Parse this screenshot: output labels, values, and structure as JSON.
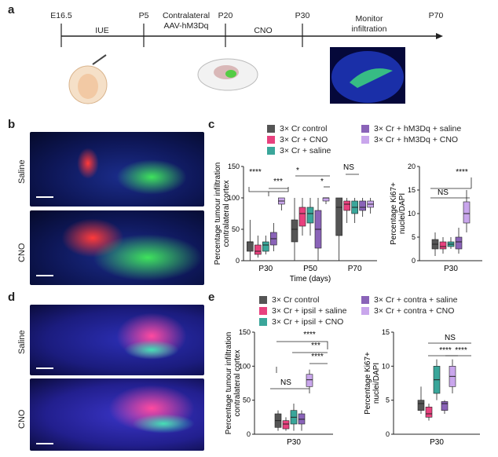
{
  "panels": {
    "a": "a",
    "b": "b",
    "c": "c",
    "d": "d",
    "e": "e"
  },
  "timeline": {
    "ticks": [
      "E16.5",
      "P5",
      "Contralateral",
      "AAV-hM3Dq",
      "P20",
      "P30",
      "P70"
    ],
    "segments": [
      "IUE",
      "CNO",
      "Monitor",
      "infiltration"
    ]
  },
  "panel_b": {
    "saline": "Saline",
    "cno": "CNO"
  },
  "panel_d": {
    "saline": "Saline",
    "cno": "CNO"
  },
  "legend_c": [
    "3× Cr control",
    "3× Cr + CNO",
    "3× Cr + saline",
    "3× Cr + hM3Dq + saline",
    "3× Cr + hM3Dq + CNO"
  ],
  "legend_e": [
    "3× Cr control",
    "3× Cr + ipsil + saline",
    "3× Cr + ipsil + CNO",
    "3× Cr + contra + saline",
    "3× Cr + contra + CNO"
  ],
  "colors": {
    "control": "#555555",
    "cno": "#e8417e",
    "saline": "#3aa69a",
    "hm3dq_saline": "#8a63b8",
    "hm3dq_cno": "#c9a6ec"
  },
  "chart_data": [
    {
      "type": "box",
      "ylabel": "Percentage tumour infiltration contralateral cortex",
      "xlabel": "Time (days)",
      "categories": [
        "P30",
        "P50",
        "P70"
      ],
      "ylim": [
        0,
        100
      ],
      "yticks": [
        "0",
        "50",
        "100",
        "150"
      ],
      "series": [
        {
          "name": "3× Cr control",
          "boxes": [
            [
              0,
              15,
              30,
              30,
              65
            ],
            [
              0,
              30,
              50,
              65,
              100
            ],
            [
              0,
              40,
              85,
              100,
              100
            ]
          ]
        },
        {
          "name": "3× Cr + CNO",
          "boxes": [
            [
              5,
              10,
              15,
              25,
              40
            ],
            [
              40,
              55,
              75,
              85,
              100
            ],
            [
              60,
              80,
              90,
              95,
              100
            ]
          ]
        },
        {
          "name": "3× Cr + saline",
          "boxes": [
            [
              10,
              15,
              25,
              30,
              40
            ],
            [
              40,
              60,
              75,
              85,
              100
            ],
            [
              60,
              75,
              85,
              95,
              100
            ]
          ]
        },
        {
          "name": "3× Cr + hM3Dq + saline",
          "boxes": [
            [
              15,
              25,
              35,
              45,
              60
            ],
            [
              0,
              20,
              50,
              80,
              100
            ],
            [
              70,
              80,
              85,
              95,
              100
            ]
          ]
        },
        {
          "name": "3× Cr + hM3Dq + CNO",
          "boxes": [
            [
              80,
              90,
              95,
              100,
              100
            ],
            [
              90,
              95,
              100,
              100,
              100
            ],
            [
              75,
              85,
              90,
              95,
              100
            ]
          ]
        }
      ],
      "annotations": [
        "****",
        "***",
        "*",
        "*",
        "NS"
      ]
    },
    {
      "type": "box",
      "ylabel": "Percentage Ki67+ nuclei/DAPI",
      "categories": [
        "P30"
      ],
      "ylim": [
        0,
        20
      ],
      "yticks": [
        "0",
        "5",
        "10",
        "15",
        "20"
      ],
      "series": [
        {
          "name": "3× Cr control",
          "boxes": [
            [
              1,
              2.5,
              3.5,
              4.5,
              6
            ]
          ]
        },
        {
          "name": "3× Cr + CNO",
          "boxes": [
            [
              1.5,
              2.5,
              3,
              4,
              5
            ]
          ]
        },
        {
          "name": "3× Cr + saline",
          "boxes": [
            [
              2.5,
              3,
              3.5,
              4,
              5
            ]
          ]
        },
        {
          "name": "3× Cr + hM3Dq + saline",
          "boxes": [
            [
              1.5,
              2.5,
              4,
              5,
              7
            ]
          ]
        },
        {
          "name": "3× Cr + hM3Dq + CNO",
          "boxes": [
            [
              6,
              8,
              10,
              12.5,
              15
            ]
          ]
        }
      ],
      "annotations": [
        "NS",
        "****"
      ]
    },
    {
      "type": "box",
      "ylabel": "Percentage tumour infiltration contralateral cortex",
      "categories": [
        "P30"
      ],
      "ylim": [
        0,
        150
      ],
      "yticks": [
        "0",
        "50",
        "100",
        "150"
      ],
      "series": [
        {
          "name": "3× Cr control",
          "boxes": [
            [
              5,
              10,
              20,
              30,
              35
            ]
          ]
        },
        {
          "name": "3× Cr + ipsil + saline",
          "boxes": [
            [
              5,
              8,
              15,
              20,
              25
            ]
          ]
        },
        {
          "name": "3× Cr + ipsil + CNO",
          "boxes": [
            [
              5,
              15,
              25,
              35,
              45
            ]
          ]
        },
        {
          "name": "3× Cr + contra + saline",
          "boxes": [
            [
              5,
              15,
              22,
              30,
              35
            ]
          ]
        },
        {
          "name": "3× Cr + contra + CNO",
          "boxes": [
            [
              60,
              70,
              80,
              88,
              95
            ]
          ]
        }
      ],
      "annotations": [
        "****",
        "***",
        "****",
        "NS"
      ]
    },
    {
      "type": "box",
      "ylabel": "Percentage Ki67+ nuclei/DAPI",
      "categories": [
        "P30"
      ],
      "ylim": [
        0,
        15
      ],
      "yticks": [
        "0",
        "5",
        "10",
        "15"
      ],
      "series": [
        {
          "name": "3× Cr control",
          "boxes": [
            [
              3,
              3.5,
              4.5,
              5,
              7
            ]
          ]
        },
        {
          "name": "3× Cr + ipsil + saline",
          "boxes": [
            [
              2,
              2.5,
              3,
              4,
              4.5
            ]
          ]
        },
        {
          "name": "3× Cr + ipsil + CNO",
          "boxes": [
            [
              5,
              6,
              8,
              10,
              11
            ]
          ]
        },
        {
          "name": "3× Cr + contra + saline",
          "boxes": [
            [
              3,
              3.5,
              4.5,
              4.8,
              5
            ]
          ]
        },
        {
          "name": "3× Cr + contra + CNO",
          "boxes": [
            [
              6,
              7,
              8.5,
              10,
              11
            ]
          ]
        }
      ],
      "annotations": [
        "****",
        "****",
        "NS"
      ],
      "xlabel_tick": "P30"
    }
  ]
}
